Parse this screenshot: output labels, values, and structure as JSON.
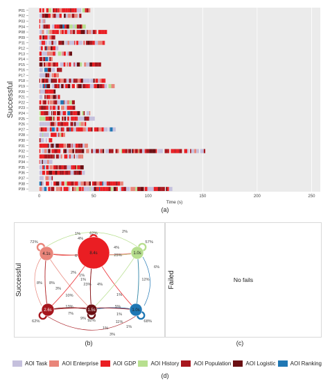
{
  "panel_labels": {
    "a": "(a)",
    "b": "(b)",
    "c": "(c)",
    "d": "(d)"
  },
  "chart_data": [
    {
      "type": "sequence",
      "ylabel": "Successful",
      "xlabel": "Time (s)",
      "xlim": [
        -10,
        258
      ],
      "xticks": [
        0,
        50,
        100,
        150,
        200,
        250
      ],
      "participants": [
        "P01",
        "P02",
        "P03",
        "P04",
        "P08",
        "P09",
        "P11",
        "P12",
        "P13",
        "P14",
        "P15",
        "P16",
        "P17",
        "P18",
        "P19",
        "P20",
        "P21",
        "P22",
        "P23",
        "P24",
        "P25",
        "P26",
        "P27",
        "P28",
        "P30",
        "P31",
        "P32",
        "P33",
        "P34",
        "P35",
        "P36",
        "P37",
        "P38",
        "P39"
      ],
      "durations": [
        46,
        38,
        5,
        42,
        62,
        12,
        60,
        15,
        28,
        12,
        55,
        22,
        18,
        60,
        68,
        14,
        18,
        32,
        32,
        46,
        52,
        42,
        68,
        22,
        10,
        44,
        152,
        40,
        12,
        38,
        40,
        12,
        76,
        120
      ],
      "grid": true,
      "background": "#ebebeb"
    },
    {
      "type": "network",
      "ylabel": "Successful",
      "nodes": [
        {
          "id": "enterprise",
          "label": "4.1s",
          "color": "#e9857a",
          "self_loop": "72%"
        },
        {
          "id": "gdp",
          "label": "8.4s",
          "color": "#ea1e23",
          "self_loop": "62%"
        },
        {
          "id": "history",
          "label": "1.0s",
          "color": "#b7df8f",
          "self_loop": "57%"
        },
        {
          "id": "population",
          "label": "2.6s",
          "color": "#a7161d",
          "self_loop": "62%"
        },
        {
          "id": "logistic",
          "label": "1.5s",
          "color": "#6b0f13",
          "self_loop": "92%"
        },
        {
          "id": "ranking",
          "label": "1.0s",
          "color": "#1f77b4",
          "self_loop": "68%"
        }
      ],
      "edge_labels": [
        "1%",
        "4%",
        "2%",
        "16%",
        "6%",
        "4%",
        "25%",
        "2%",
        "1%",
        "1%",
        "6%",
        "12%",
        "8%",
        "8%",
        "3%",
        "23%",
        "4%",
        "10%",
        "1%",
        "13%",
        "7%",
        "5%",
        "1%",
        "9%",
        "11%",
        "1%",
        "3%",
        "1%"
      ]
    },
    {
      "type": "empty",
      "ylabel": "Failed",
      "message": "No fails"
    }
  ],
  "legend": [
    {
      "label": "AOI Task",
      "color": "#c5c0dd"
    },
    {
      "label": "AOI Enterprise",
      "color": "#e9857a"
    },
    {
      "label": "AOI GDP",
      "color": "#ea1e23"
    },
    {
      "label": "AOI History",
      "color": "#b7df8f"
    },
    {
      "label": "AOI Population",
      "color": "#a7161d"
    },
    {
      "label": "AOI Logistic",
      "color": "#6b0f13"
    },
    {
      "label": "AOI Ranking",
      "color": "#1f77b4"
    }
  ]
}
